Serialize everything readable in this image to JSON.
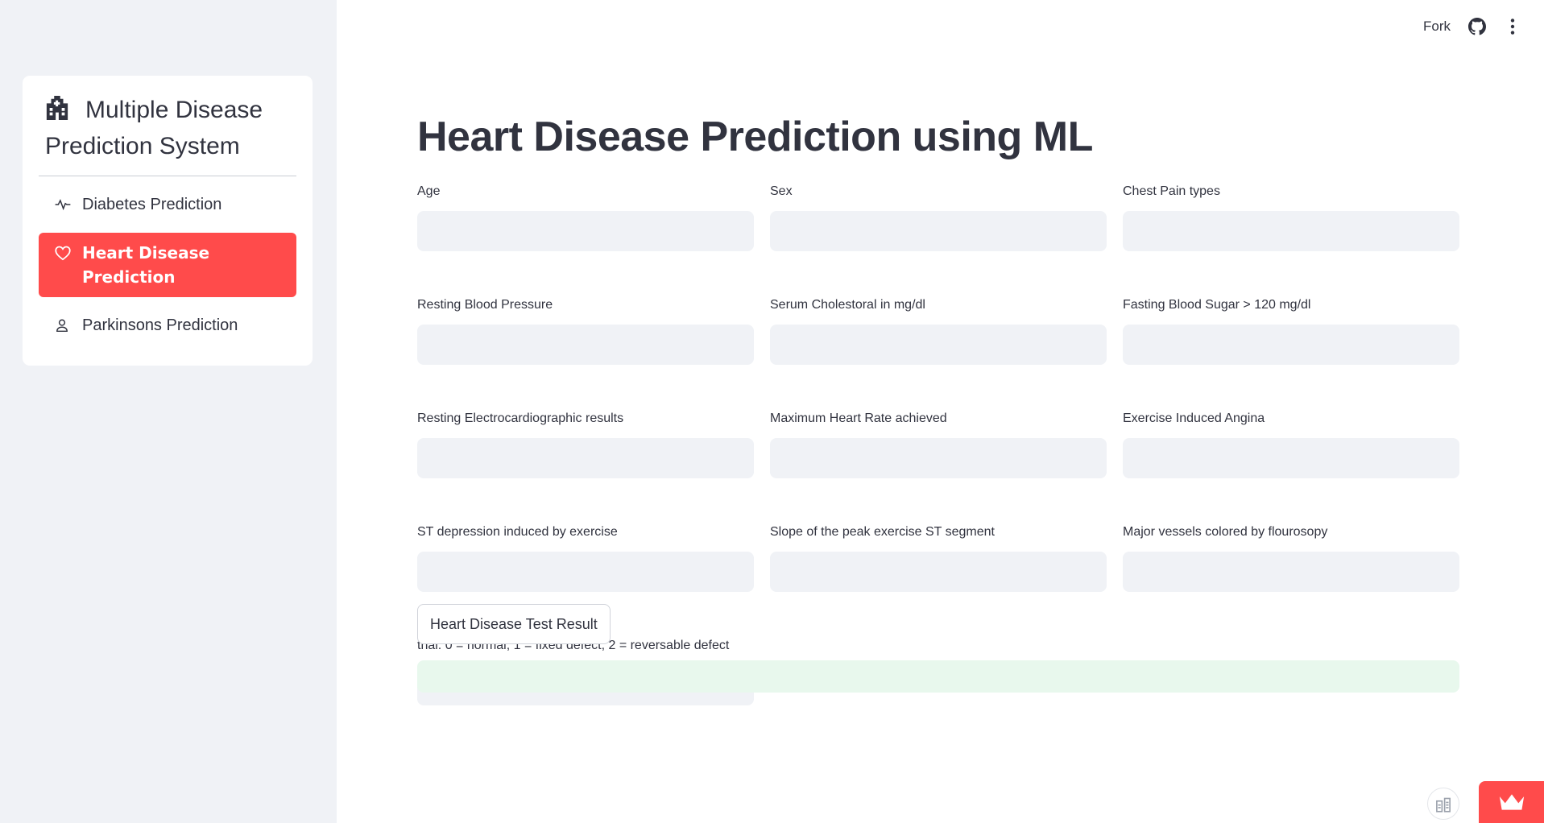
{
  "sidebar": {
    "title": "Multiple Disease Prediction System",
    "title_icon": "hospital-icon",
    "items": [
      {
        "label": "Diabetes Prediction",
        "icon": "activity-icon",
        "active": false
      },
      {
        "label": "Heart Disease Prediction",
        "icon": "heart-icon",
        "active": true
      },
      {
        "label": "Parkinsons Prediction",
        "icon": "person-icon",
        "active": false
      }
    ]
  },
  "header": {
    "fork_label": "Fork",
    "github_icon": "github-icon",
    "menu_icon": "kebab-menu-icon"
  },
  "main": {
    "title": "Heart Disease Prediction using ML",
    "fields": [
      {
        "label": "Age",
        "value": ""
      },
      {
        "label": "Sex",
        "value": ""
      },
      {
        "label": "Chest Pain types",
        "value": ""
      },
      {
        "label": "Resting Blood Pressure",
        "value": ""
      },
      {
        "label": "Serum Cholestoral in mg/dl",
        "value": ""
      },
      {
        "label": "Fasting Blood Sugar > 120 mg/dl",
        "value": ""
      },
      {
        "label": "Resting Electrocardiographic results",
        "value": ""
      },
      {
        "label": "Maximum Heart Rate achieved",
        "value": ""
      },
      {
        "label": "Exercise Induced Angina",
        "value": ""
      },
      {
        "label": "ST depression induced by exercise",
        "value": ""
      },
      {
        "label": "Slope of the peak exercise ST segment",
        "value": ""
      },
      {
        "label": "Major vessels colored by flourosopy",
        "value": ""
      },
      {
        "label": "thal: 0 = normal; 1 = fixed defect; 2 = reversable defect",
        "value": ""
      }
    ],
    "submit_label": "Heart Disease Test Result",
    "result_text": ""
  },
  "colors": {
    "accent": "#ff4b4b",
    "sidebar_bg": "#f0f2f6",
    "input_bg": "#f0f2f6",
    "success_bg": "#e8f8ed",
    "text": "#31333f"
  }
}
